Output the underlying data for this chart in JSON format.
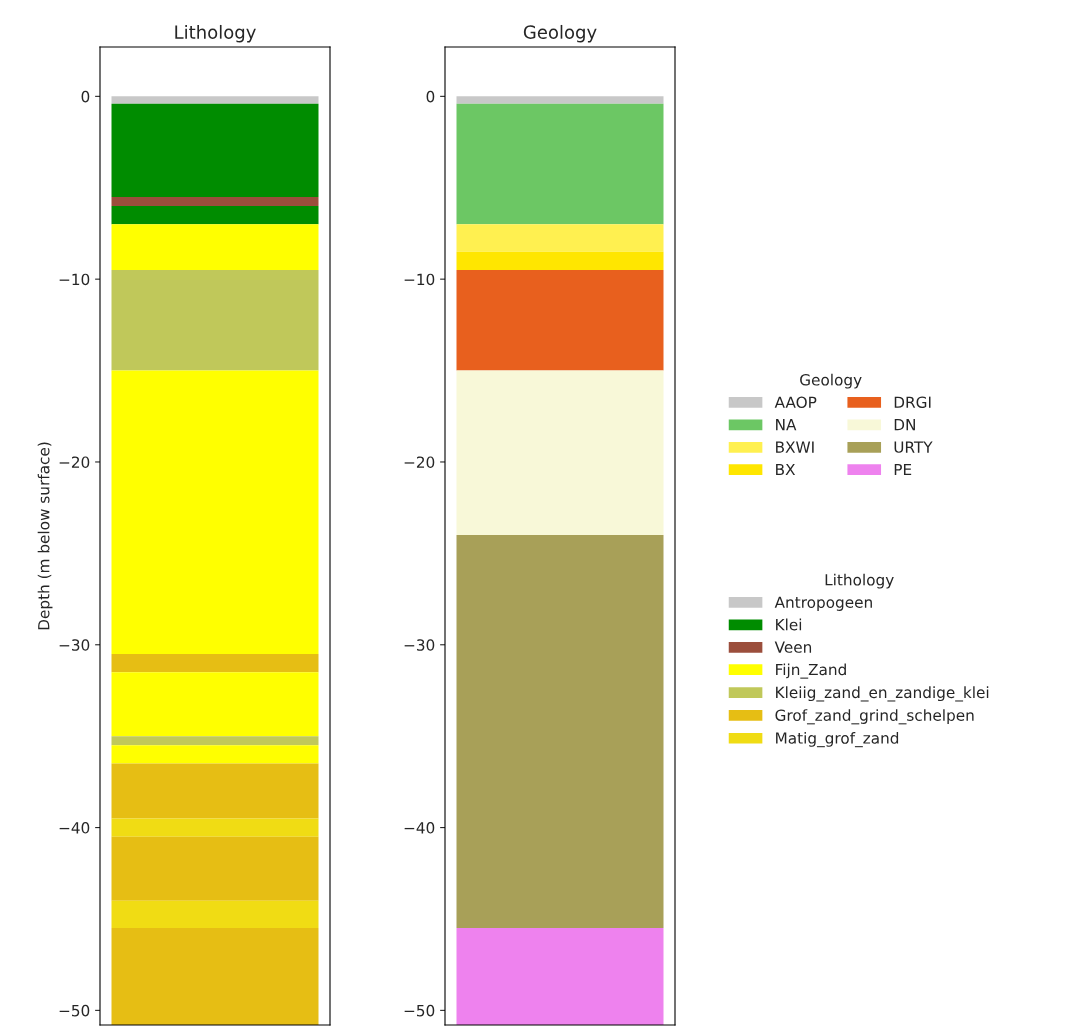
{
  "chart_data": [
    {
      "type": "bar",
      "title": "Lithology",
      "ylabel": "Depth (m below surface)",
      "categories": [
        null
      ],
      "stacked": true,
      "ylim": [
        -50.8,
        2.7
      ],
      "yticks": [
        {
          "value": 0,
          "label": "0"
        },
        {
          "value": -10,
          "label": "−10"
        },
        {
          "value": -20,
          "label": "−20"
        },
        {
          "value": -30,
          "label": "−30"
        },
        {
          "value": -40,
          "label": "−40"
        },
        {
          "value": -50,
          "label": "−50"
        }
      ],
      "tick_labels": "y",
      "legend": "right",
      "legend_title": "Lithology",
      "series": [
        {
          "name": "Antropogeen",
          "color": "#c8c8c8",
          "values": [
            -0.4
          ]
        },
        {
          "name": "Klei",
          "color": "#008c00",
          "values": [
            -5.1
          ]
        },
        {
          "name": "Veen",
          "color": "#9b4e3c",
          "values": [
            -0.5
          ]
        },
        {
          "color": "#008c00",
          "values": [
            -1.0
          ]
        },
        {
          "name": "Fijn_Zand",
          "color": "#ffff00",
          "values": [
            -2.5
          ]
        },
        {
          "name": "Kleiig_zand_en_zandige_klei",
          "color": "#c0c85a",
          "values": [
            -5.5
          ]
        },
        {
          "color": "#ffff00",
          "values": [
            -15.5
          ]
        },
        {
          "name": "Grof_zand_grind_schelpen",
          "color": "#e6be14",
          "values": [
            -1.0
          ]
        },
        {
          "color": "#ffff00",
          "values": [
            -3.5
          ]
        },
        {
          "color": "#c0c85a",
          "values": [
            -0.5
          ]
        },
        {
          "color": "#ffff00",
          "values": [
            -1.0
          ]
        },
        {
          "color": "#e6be14",
          "values": [
            -3.0
          ]
        },
        {
          "name": "Matig_grof_zand",
          "color": "#f0dc14",
          "values": [
            -1.0
          ]
        },
        {
          "color": "#e6be14",
          "values": [
            -3.5
          ]
        },
        {
          "color": "#f0dc14",
          "values": [
            -1.5
          ]
        },
        {
          "color": "#e6be14",
          "values": [
            -5.3
          ]
        }
      ]
    },
    {
      "type": "bar",
      "title": "Geology",
      "categories": [
        null
      ],
      "stacked": true,
      "ylim": [
        -50.8,
        2.7
      ],
      "yticks": [
        {
          "value": 0,
          "label": "0"
        },
        {
          "value": -10,
          "label": "−10"
        },
        {
          "value": -20,
          "label": "−20"
        },
        {
          "value": -30,
          "label": "−30"
        },
        {
          "value": -40,
          "label": "−40"
        },
        {
          "value": -50,
          "label": "−50"
        }
      ],
      "tick_labels": "y",
      "legend": "right",
      "legend_title": "Geology",
      "series": [
        {
          "name": "AAOP",
          "color": "#c8c8c8",
          "values": [
            -0.4
          ]
        },
        {
          "name": "NA",
          "color": "#6cc764",
          "values": [
            -6.6
          ]
        },
        {
          "name": "BXWI",
          "color": "#fff050",
          "values": [
            -1.5
          ]
        },
        {
          "name": "BX",
          "color": "#ffe600",
          "values": [
            -1.0
          ]
        },
        {
          "name": "DRGI",
          "color": "#e8601e",
          "values": [
            -5.5
          ]
        },
        {
          "name": "DN",
          "color": "#f8f8d8",
          "values": [
            -9.0
          ]
        },
        {
          "name": "URTY",
          "color": "#a8a058",
          "values": [
            -21.5
          ]
        },
        {
          "name": "PE",
          "color": "#ee82ee",
          "values": [
            -5.3
          ]
        }
      ]
    }
  ]
}
